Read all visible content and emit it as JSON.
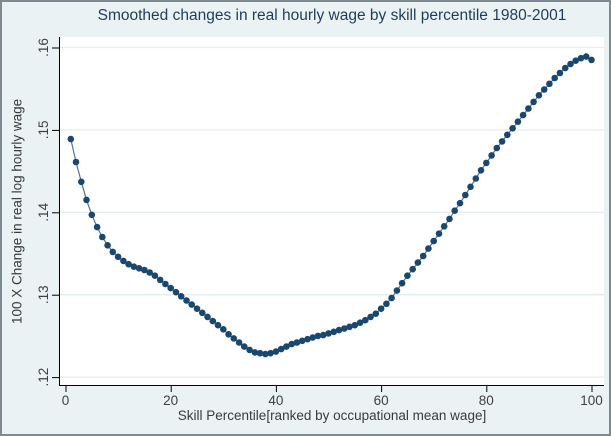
{
  "chart": {
    "title": "Smoothed changes in real hourly wage by skill percentile 1980-2001",
    "x_axis_label": "Skill Percentile[ranked by occupational mean wage]",
    "y_axis_label": "100 X Change in real log hourly wage"
  },
  "colors": {
    "background": "#eaf2f3",
    "plot_background": "#ffffff",
    "gridline": "#e3edf0",
    "axis": "#000000",
    "marker": "#1a476f",
    "connector": "#56738f",
    "title_text": "#1e3c5c",
    "tick_text": "#404040"
  },
  "chart_data": {
    "type": "line",
    "title": "Smoothed changes in real hourly wage by skill percentile 1980-2001",
    "xlabel": "Skill Percentile[ranked by occupational mean wage]",
    "ylabel": "100 X Change in real log hourly wage",
    "legend": "none",
    "grid": true,
    "marker": "circle",
    "series_color": "#1a476f",
    "xticks": [
      0,
      20,
      40,
      60,
      80,
      100
    ],
    "yticks": [
      0.12,
      0.13,
      0.14,
      0.15,
      0.16
    ],
    "ytick_labels": [
      ".12",
      ".13",
      ".14",
      ".15",
      ".16"
    ],
    "xlim": [
      0,
      103
    ],
    "ylim": [
      0.1185,
      0.1615
    ],
    "x": [
      1,
      2,
      3,
      4,
      5,
      6,
      7,
      8,
      9,
      10,
      11,
      12,
      13,
      14,
      15,
      16,
      17,
      18,
      19,
      20,
      21,
      22,
      23,
      24,
      25,
      26,
      27,
      28,
      29,
      30,
      31,
      32,
      33,
      34,
      35,
      36,
      37,
      38,
      39,
      40,
      41,
      42,
      43,
      44,
      45,
      46,
      47,
      48,
      49,
      50,
      51,
      52,
      53,
      54,
      55,
      56,
      57,
      58,
      59,
      60,
      61,
      62,
      63,
      64,
      65,
      66,
      67,
      68,
      69,
      70,
      71,
      72,
      73,
      74,
      75,
      76,
      77,
      78,
      79,
      80,
      81,
      82,
      83,
      84,
      85,
      86,
      87,
      88,
      89,
      90,
      91,
      92,
      93,
      94,
      95,
      96,
      97,
      98,
      99,
      100
    ],
    "values": [
      0.1489,
      0.1461,
      0.1437,
      0.1415,
      0.1397,
      0.1382,
      0.137,
      0.136,
      0.1352,
      0.1346,
      0.1341,
      0.1337,
      0.1334,
      0.1332,
      0.133,
      0.1327,
      0.1323,
      0.1318,
      0.1313,
      0.1308,
      0.1303,
      0.1298,
      0.1293,
      0.1288,
      0.1283,
      0.1278,
      0.1273,
      0.1268,
      0.1263,
      0.1258,
      0.1252,
      0.1247,
      0.1242,
      0.1237,
      0.1233,
      0.123,
      0.1229,
      0.1228,
      0.1229,
      0.1231,
      0.1234,
      0.1237,
      0.124,
      0.1242,
      0.1244,
      0.1246,
      0.1248,
      0.125,
      0.1251,
      0.1253,
      0.1255,
      0.1257,
      0.1259,
      0.1261,
      0.1263,
      0.1266,
      0.1269,
      0.1273,
      0.1277,
      0.1283,
      0.1289,
      0.1296,
      0.1305,
      0.1314,
      0.1323,
      0.1331,
      0.1339,
      0.1347,
      0.1356,
      0.1365,
      0.1374,
      0.1383,
      0.1392,
      0.1402,
      0.1411,
      0.1421,
      0.1431,
      0.1441,
      0.1451,
      0.146,
      0.1469,
      0.1478,
      0.1486,
      0.1494,
      0.1502,
      0.151,
      0.1518,
      0.1526,
      0.1534,
      0.1542,
      0.1549,
      0.1556,
      0.1563,
      0.1569,
      0.1575,
      0.158,
      0.1584,
      0.1587,
      0.1589,
      0.1585
    ]
  }
}
